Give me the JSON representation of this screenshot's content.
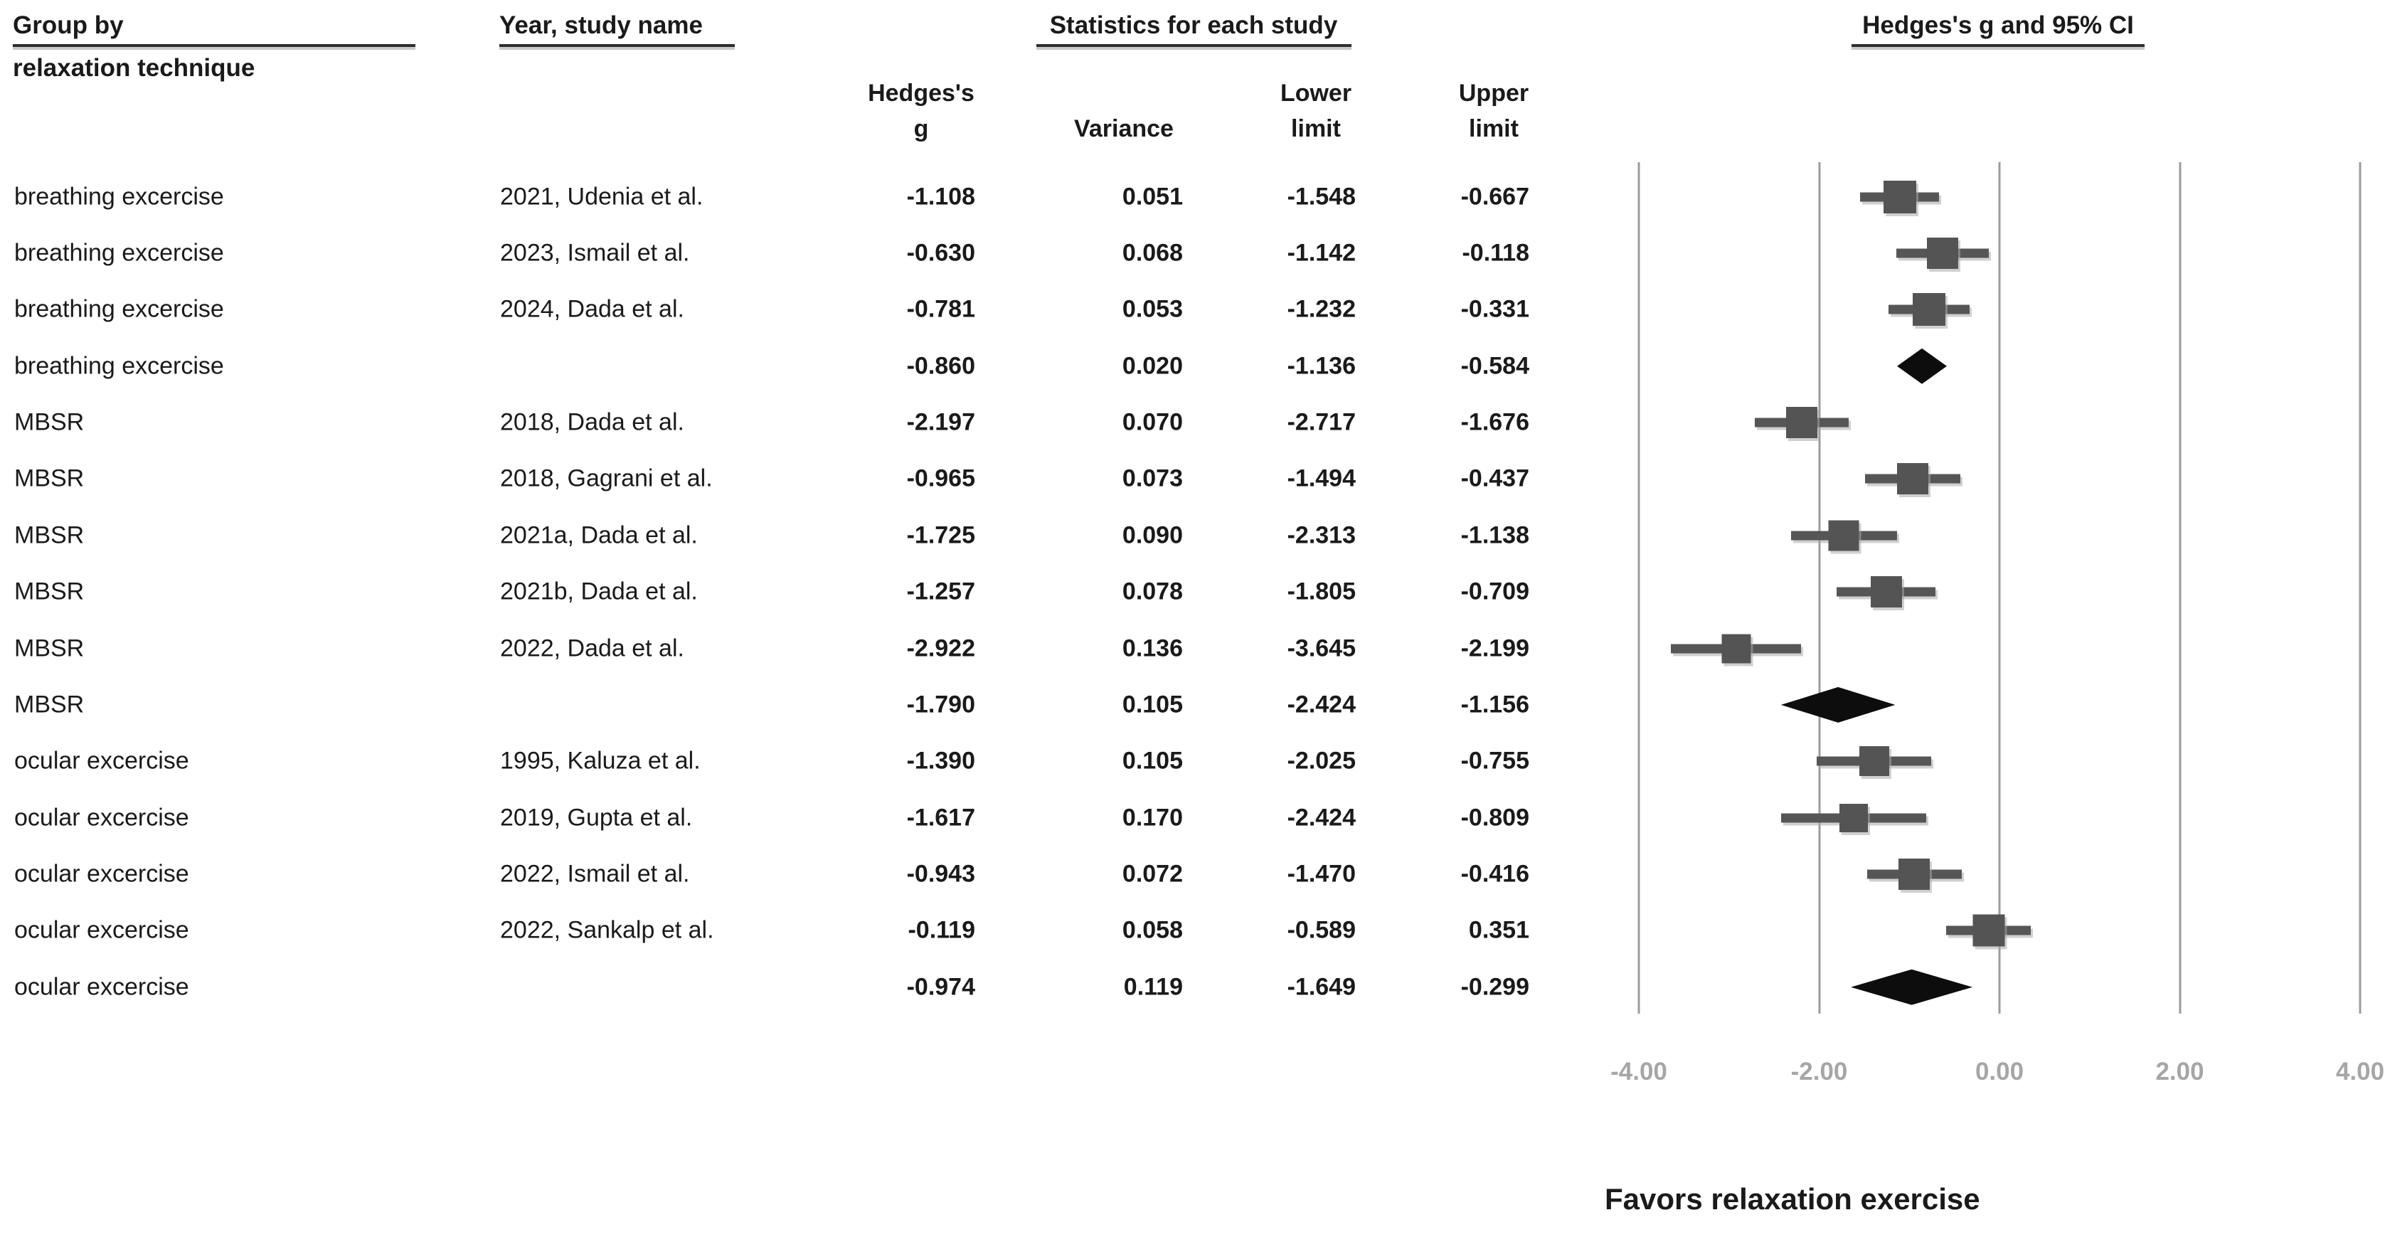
{
  "header": {
    "group_by_line1": "Group by",
    "group_by_line2": "relaxation technique",
    "study_col": "Year, study name",
    "stats_col": "Statistics for each study",
    "plot_col": "Hedges's g and 95% CI",
    "stat_headers": {
      "hedges_line1": "Hedges's",
      "hedges_line2": "g",
      "variance": "Variance",
      "lower_line1": "Lower",
      "lower_line2": "limit",
      "upper_line1": "Upper",
      "upper_line2": "limit"
    }
  },
  "axis": {
    "ticks": [
      "-4.00",
      "-2.00",
      "0.00",
      "2.00",
      "4.00"
    ],
    "tick_values": [
      -4,
      -2,
      0,
      2,
      4
    ]
  },
  "footer": {
    "favors_label": "Favors relaxation exercise"
  },
  "colors": {
    "marker": "#545454",
    "ci_line": "#565656",
    "summary_diamond": "#0d0d0d",
    "gridline": "#9c9c9c",
    "tick_text": "#a6a6a6",
    "text": "#1a1a1a",
    "background": "#ffffff"
  },
  "chart_data": {
    "type": "forest",
    "effect_measure": "Hedges's g",
    "xlim": [
      -4,
      4
    ],
    "grid": true,
    "columns": [
      "Group by relaxation technique",
      "Year, study name",
      "Hedges's g",
      "Variance",
      "Lower limit",
      "Upper limit"
    ],
    "rows": [
      {
        "group": "breathing excercise",
        "study": "2021, Udenia et al.",
        "g": "-1.108",
        "variance": "0.051",
        "lower": "-1.548",
        "upper": "-0.667",
        "kind": "study"
      },
      {
        "group": "breathing excercise",
        "study": "2023, Ismail et al.",
        "g": "-0.630",
        "variance": "0.068",
        "lower": "-1.142",
        "upper": "-0.118",
        "kind": "study"
      },
      {
        "group": "breathing excercise",
        "study": "2024, Dada et al.",
        "g": "-0.781",
        "variance": "0.053",
        "lower": "-1.232",
        "upper": "-0.331",
        "kind": "study"
      },
      {
        "group": "breathing excercise",
        "study": "",
        "g": "-0.860",
        "variance": "0.020",
        "lower": "-1.136",
        "upper": "-0.584",
        "kind": "summary"
      },
      {
        "group": "MBSR",
        "study": "2018, Dada et al.",
        "g": "-2.197",
        "variance": "0.070",
        "lower": "-2.717",
        "upper": "-1.676",
        "kind": "study"
      },
      {
        "group": "MBSR",
        "study": "2018, Gagrani et al.",
        "g": "-0.965",
        "variance": "0.073",
        "lower": "-1.494",
        "upper": "-0.437",
        "kind": "study"
      },
      {
        "group": "MBSR",
        "study": "2021a, Dada et al.",
        "g": "-1.725",
        "variance": "0.090",
        "lower": "-2.313",
        "upper": "-1.138",
        "kind": "study"
      },
      {
        "group": "MBSR",
        "study": "2021b, Dada et al.",
        "g": "-1.257",
        "variance": "0.078",
        "lower": "-1.805",
        "upper": "-0.709",
        "kind": "study"
      },
      {
        "group": "MBSR",
        "study": "2022, Dada et al.",
        "g": "-2.922",
        "variance": "0.136",
        "lower": "-3.645",
        "upper": "-2.199",
        "kind": "study"
      },
      {
        "group": "MBSR",
        "study": "",
        "g": "-1.790",
        "variance": "0.105",
        "lower": "-2.424",
        "upper": "-1.156",
        "kind": "summary"
      },
      {
        "group": "ocular excercise",
        "study": "1995, Kaluza et al.",
        "g": "-1.390",
        "variance": "0.105",
        "lower": "-2.025",
        "upper": "-0.755",
        "kind": "study"
      },
      {
        "group": "ocular excercise",
        "study": "2019, Gupta et al.",
        "g": "-1.617",
        "variance": "0.170",
        "lower": "-2.424",
        "upper": "-0.809",
        "kind": "study"
      },
      {
        "group": "ocular excercise",
        "study": "2022, Ismail et al.",
        "g": "-0.943",
        "variance": "0.072",
        "lower": "-1.470",
        "upper": "-0.416",
        "kind": "study"
      },
      {
        "group": "ocular excercise",
        "study": "2022, Sankalp et al.",
        "g": "-0.119",
        "variance": "0.058",
        "lower": "-0.589",
        "upper": "0.351",
        "kind": "study"
      },
      {
        "group": "ocular excercise",
        "study": "",
        "g": "-0.974",
        "variance": "0.119",
        "lower": "-1.649",
        "upper": "-0.299",
        "kind": "summary"
      }
    ]
  }
}
